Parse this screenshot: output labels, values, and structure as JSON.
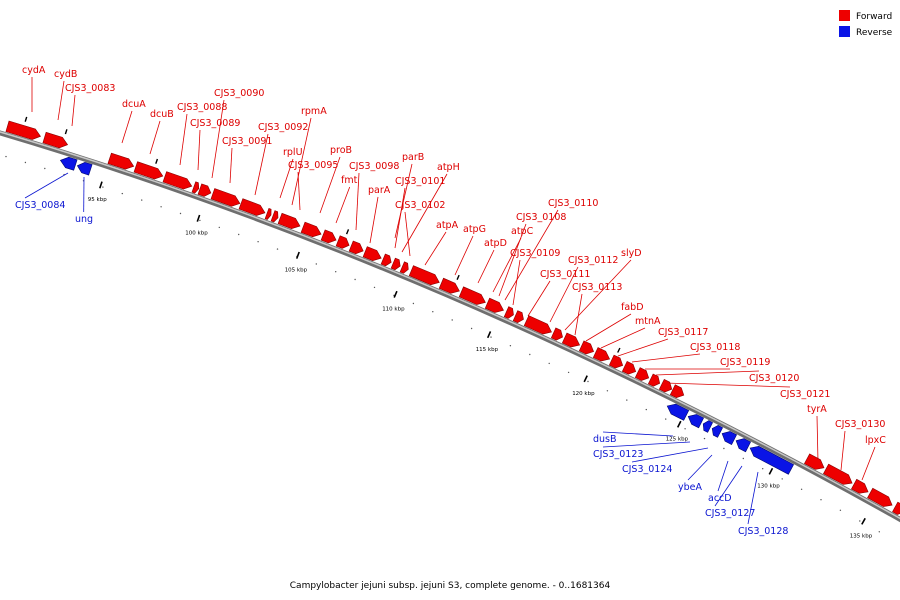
{
  "caption": "Campylobacter jejuni subsp. jejuni S3, complete genome. - 0..1681364",
  "legend": {
    "forward": {
      "label": "Forward",
      "color": "#ee0000"
    },
    "reverse": {
      "label": "Reverse",
      "color": "#0a14e6"
    }
  },
  "axis_ticks": [
    "95 kbp",
    "100 kbp",
    "105 kbp",
    "110 kbp",
    "115 kbp",
    "120 kbp",
    "125 kbp",
    "130 kbp",
    "135 kbp"
  ],
  "genes_forward": [
    "cydA",
    "cydB",
    "CJS3_0083",
    "dcuA",
    "dcuB",
    "CJS3_0088",
    "CJS3_0089",
    "CJS3_0090",
    "CJS3_0091",
    "CJS3_0092",
    "rplU",
    "rpmA",
    "CJS3_0095",
    "proB",
    "fmt",
    "CJS3_0098",
    "parB",
    "parA",
    "CJS3_0101",
    "atpH",
    "CJS3_0102",
    "atpA",
    "atpG",
    "atpD",
    "atpC",
    "CJS3_0108",
    "CJS3_0110",
    "CJS3_0109",
    "CJS3_0111",
    "CJS3_0112",
    "slyD",
    "CJS3_0113",
    "fabD",
    "mtnA",
    "CJS3_0117",
    "CJS3_0118",
    "CJS3_0119",
    "CJS3_0120",
    "CJS3_0121",
    "tyrA",
    "CJS3_0130",
    "lpxC"
  ],
  "genes_reverse": [
    "CJS3_0084",
    "ung",
    "dusB",
    "CJS3_0123",
    "CJS3_0124",
    "ybeA",
    "accD",
    "CJS3_0127",
    "CJS3_0128"
  ]
}
